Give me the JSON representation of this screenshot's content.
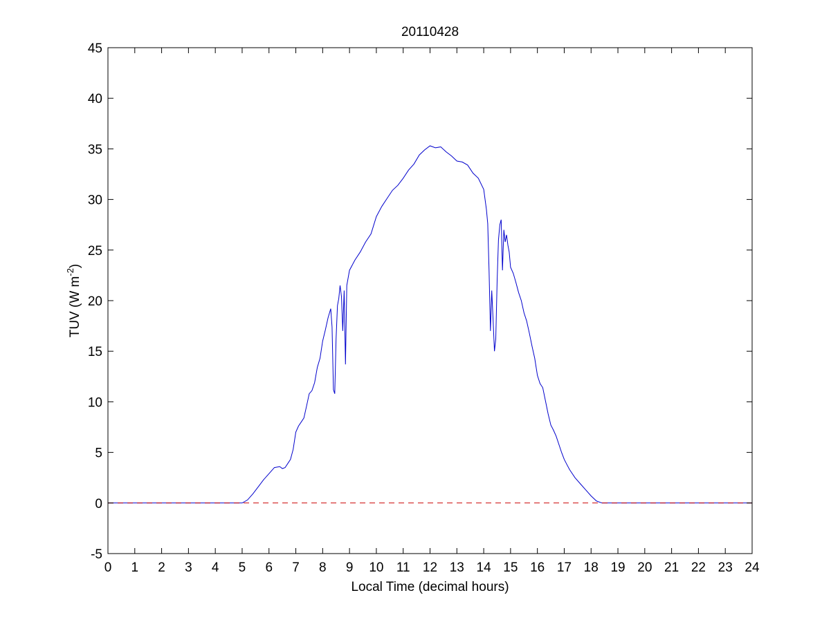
{
  "chart_data": {
    "type": "line",
    "title": "20110428",
    "xlabel": "Local Time (decimal hours)",
    "ylabel": {
      "base": "TUV (W m",
      "sup": "-2",
      "tail": ")"
    },
    "xlim": [
      0,
      24
    ],
    "ylim": [
      -5,
      45
    ],
    "xticks": [
      0,
      1,
      2,
      3,
      4,
      5,
      6,
      7,
      8,
      9,
      10,
      11,
      12,
      13,
      14,
      15,
      16,
      17,
      18,
      19,
      20,
      21,
      22,
      23,
      24
    ],
    "yticks": [
      -5,
      0,
      5,
      10,
      15,
      20,
      25,
      30,
      35,
      40,
      45
    ],
    "grid": false,
    "series": [
      {
        "color": "#0000cc",
        "style": "solid",
        "x": [
          0,
          5.0,
          5.2,
          5.4,
          5.6,
          5.8,
          6.0,
          6.2,
          6.4,
          6.5,
          6.6,
          6.7,
          6.8,
          6.9,
          7.0,
          7.1,
          7.2,
          7.3,
          7.4,
          7.5,
          7.6,
          7.7,
          7.8,
          7.9,
          8.0,
          8.1,
          8.2,
          8.3,
          8.35,
          8.4,
          8.45,
          8.5,
          8.55,
          8.6,
          8.65,
          8.7,
          8.75,
          8.8,
          8.85,
          8.9,
          9.0,
          9.2,
          9.4,
          9.6,
          9.8,
          10.0,
          10.2,
          10.4,
          10.6,
          10.8,
          11.0,
          11.2,
          11.4,
          11.6,
          11.8,
          12.0,
          12.2,
          12.4,
          12.6,
          12.8,
          13.0,
          13.2,
          13.4,
          13.6,
          13.8,
          14.0,
          14.1,
          14.15,
          14.2,
          14.25,
          14.3,
          14.35,
          14.4,
          14.45,
          14.5,
          14.55,
          14.6,
          14.65,
          14.7,
          14.75,
          14.8,
          14.85,
          14.9,
          14.95,
          15.0,
          15.1,
          15.2,
          15.3,
          15.4,
          15.5,
          15.6,
          15.7,
          15.8,
          15.9,
          16.0,
          16.1,
          16.2,
          16.3,
          16.4,
          16.5,
          16.6,
          16.7,
          16.8,
          16.9,
          17.0,
          17.1,
          17.2,
          17.4,
          17.6,
          17.8,
          18.0,
          18.2,
          18.4,
          18.6,
          18.8,
          19.0,
          19.2,
          19.4,
          24
        ],
        "y": [
          0,
          0,
          0.3,
          0.9,
          1.6,
          2.3,
          2.9,
          3.5,
          3.6,
          3.4,
          3.5,
          3.9,
          4.3,
          5.3,
          7.0,
          7.6,
          8.0,
          8.4,
          9.6,
          10.8,
          11.1,
          11.9,
          13.4,
          14.3,
          16.0,
          17.1,
          18.3,
          19.2,
          17.4,
          11.2,
          10.8,
          16.2,
          19.5,
          20.2,
          21.5,
          20.4,
          17.0,
          21.0,
          13.7,
          21.5,
          23.0,
          24.0,
          24.8,
          25.8,
          26.6,
          28.3,
          29.3,
          30.1,
          30.9,
          31.4,
          32.1,
          32.9,
          33.5,
          34.4,
          34.9,
          35.3,
          35.1,
          35.2,
          34.7,
          34.3,
          33.8,
          33.7,
          33.4,
          32.6,
          32.1,
          31.0,
          29.0,
          27.6,
          23.0,
          17.0,
          21.0,
          18.0,
          15.0,
          16.2,
          22.0,
          26.0,
          27.5,
          28.0,
          23.0,
          27.0,
          25.8,
          26.5,
          25.5,
          24.8,
          23.3,
          22.7,
          21.8,
          20.8,
          20.0,
          18.8,
          18.0,
          16.8,
          15.5,
          14.3,
          12.6,
          11.8,
          11.4,
          10.1,
          8.8,
          7.7,
          7.2,
          6.6,
          5.8,
          5.0,
          4.3,
          3.8,
          3.3,
          2.5,
          1.9,
          1.3,
          0.7,
          0.2,
          0,
          0,
          0,
          0,
          0,
          0,
          0
        ]
      },
      {
        "color": "#cc0000",
        "style": "dashed",
        "x": [
          0,
          24
        ],
        "y": [
          0,
          0
        ]
      }
    ]
  }
}
